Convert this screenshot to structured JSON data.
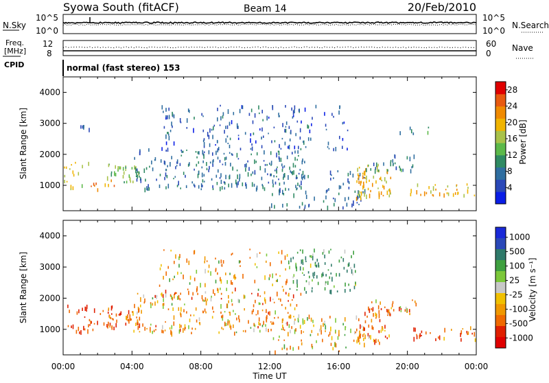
{
  "header": {
    "station": "Syowa South (fitACF)",
    "beam": "Beam 14",
    "date": "20/Feb/2010"
  },
  "noise_panel": {
    "left_label": "N.Sky",
    "left_ticks": [
      "10^5",
      "10^0"
    ],
    "right_ticks": [
      "10^5",
      "10^0"
    ],
    "right_label": "N.Search"
  },
  "freq_panel": {
    "left_label_line1": "Freq.",
    "left_label_line2": "[MHz]",
    "left_ticks": [
      "12",
      "8"
    ],
    "right_ticks": [
      "60",
      "0"
    ],
    "right_label": "Nave"
  },
  "cpid": {
    "label": "CPID",
    "mode": "normal (fast stereo) 153"
  },
  "time_axis": {
    "ticks": [
      "00:00",
      "04:00",
      "08:00",
      "12:00",
      "16:00",
      "20:00",
      "00:00"
    ],
    "label": "Time UT"
  },
  "colors": {
    "power": [
      "#0a1ee6",
      "#2a48b8",
      "#2f6ea0",
      "#2f8a63",
      "#5cb94a",
      "#a9c24a",
      "#f0b400",
      "#f08a00",
      "#e85a10",
      "#e00000"
    ],
    "velocity": [
      "#1a2ad8",
      "#2a48b8",
      "#2f7a6a",
      "#3fa040",
      "#7cc83a",
      "#c8c8c8",
      "#f0c000",
      "#f09800",
      "#f06a00",
      "#e02000",
      "#e00000"
    ]
  },
  "chart_data": [
    {
      "type": "heatmap",
      "title": "Power",
      "quantity": "Power",
      "unit": "dB",
      "colorbar_label": "Power [dB]",
      "xlabel": "Time UT",
      "ylabel": "Slant Range [km]",
      "x_range_hours": [
        0,
        24
      ],
      "x_ticks": [
        "00:00",
        "04:00",
        "08:00",
        "12:00",
        "16:00",
        "20:00",
        "00:00"
      ],
      "y_range_km": [
        180,
        4500
      ],
      "y_ticks": [
        1000,
        2000,
        3000,
        4000
      ],
      "colorbar_ticks": [
        4,
        8,
        12,
        16,
        20,
        24,
        28
      ],
      "color_range": [
        0,
        30
      ],
      "regions": [
        {
          "t0": 0.0,
          "t1": 1.5,
          "r0": 900,
          "r1": 1800,
          "value": 18,
          "density": 0.25
        },
        {
          "t0": 1.5,
          "t1": 3.0,
          "r0": 900,
          "r1": 1200,
          "value": 22,
          "density": 0.4
        },
        {
          "t0": 2.5,
          "t1": 4.5,
          "r0": 1100,
          "r1": 1700,
          "value": 14,
          "density": 0.55
        },
        {
          "t0": 4.0,
          "t1": 14.0,
          "r0": 900,
          "r1": 2200,
          "value": 8,
          "density": 0.35
        },
        {
          "t0": 5.5,
          "t1": 16.5,
          "r0": 2200,
          "r1": 3600,
          "value": 6,
          "density": 0.22
        },
        {
          "t0": 12.0,
          "t1": 17.5,
          "r0": 300,
          "r1": 1500,
          "value": 7,
          "density": 0.25
        },
        {
          "t0": 17.0,
          "t1": 19.0,
          "r0": 600,
          "r1": 1700,
          "value": 20,
          "density": 0.55
        },
        {
          "t0": 17.5,
          "t1": 20.5,
          "r0": 1500,
          "r1": 2000,
          "value": 9,
          "density": 0.4
        },
        {
          "t0": 20.0,
          "t1": 24.0,
          "r0": 700,
          "r1": 1100,
          "value": 20,
          "density": 0.4
        },
        {
          "t0": 1.0,
          "t1": 3.5,
          "r0": 2750,
          "r1": 2950,
          "value": 7,
          "density": 0.2
        },
        {
          "t0": 19.5,
          "t1": 22.0,
          "r0": 2700,
          "r1": 2950,
          "value": 9,
          "density": 0.2
        }
      ]
    },
    {
      "type": "heatmap",
      "title": "Velocity",
      "quantity": "Velocity",
      "unit": "m s^-1",
      "colorbar_label": "Velocity [m s⁻¹]",
      "xlabel": "Time UT",
      "ylabel": "Slant Range [km]",
      "x_range_hours": [
        0,
        24
      ],
      "x_ticks": [
        "00:00",
        "04:00",
        "08:00",
        "12:00",
        "16:00",
        "20:00",
        "00:00"
      ],
      "y_range_km": [
        180,
        4500
      ],
      "y_ticks": [
        1000,
        2000,
        3000,
        4000
      ],
      "colorbar_ticks": [
        1000,
        500,
        100,
        25,
        -25,
        -100,
        -500,
        -1000
      ],
      "regions": [
        {
          "t0": 0.0,
          "t1": 3.0,
          "r0": 900,
          "r1": 1800,
          "value": -300,
          "density": 0.3
        },
        {
          "t0": 2.5,
          "t1": 4.5,
          "r0": 1100,
          "r1": 1700,
          "value": -200,
          "density": 0.55
        },
        {
          "t0": 4.0,
          "t1": 14.0,
          "r0": 900,
          "r1": 2200,
          "value": -80,
          "density": 0.35
        },
        {
          "t0": 5.5,
          "t1": 13.0,
          "r0": 2200,
          "r1": 3600,
          "value": -60,
          "density": 0.2
        },
        {
          "t0": 13.0,
          "t1": 17.0,
          "r0": 2200,
          "r1": 3600,
          "value": 200,
          "density": 0.35
        },
        {
          "t0": 12.0,
          "t1": 17.5,
          "r0": 300,
          "r1": 1500,
          "value": -40,
          "density": 0.25
        },
        {
          "t0": 17.0,
          "t1": 19.0,
          "r0": 600,
          "r1": 1700,
          "value": -150,
          "density": 0.5
        },
        {
          "t0": 17.5,
          "t1": 20.5,
          "r0": 1500,
          "r1": 2000,
          "value": -90,
          "density": 0.4
        },
        {
          "t0": 20.0,
          "t1": 24.0,
          "r0": 700,
          "r1": 1100,
          "value": -200,
          "density": 0.35
        }
      ]
    }
  ]
}
